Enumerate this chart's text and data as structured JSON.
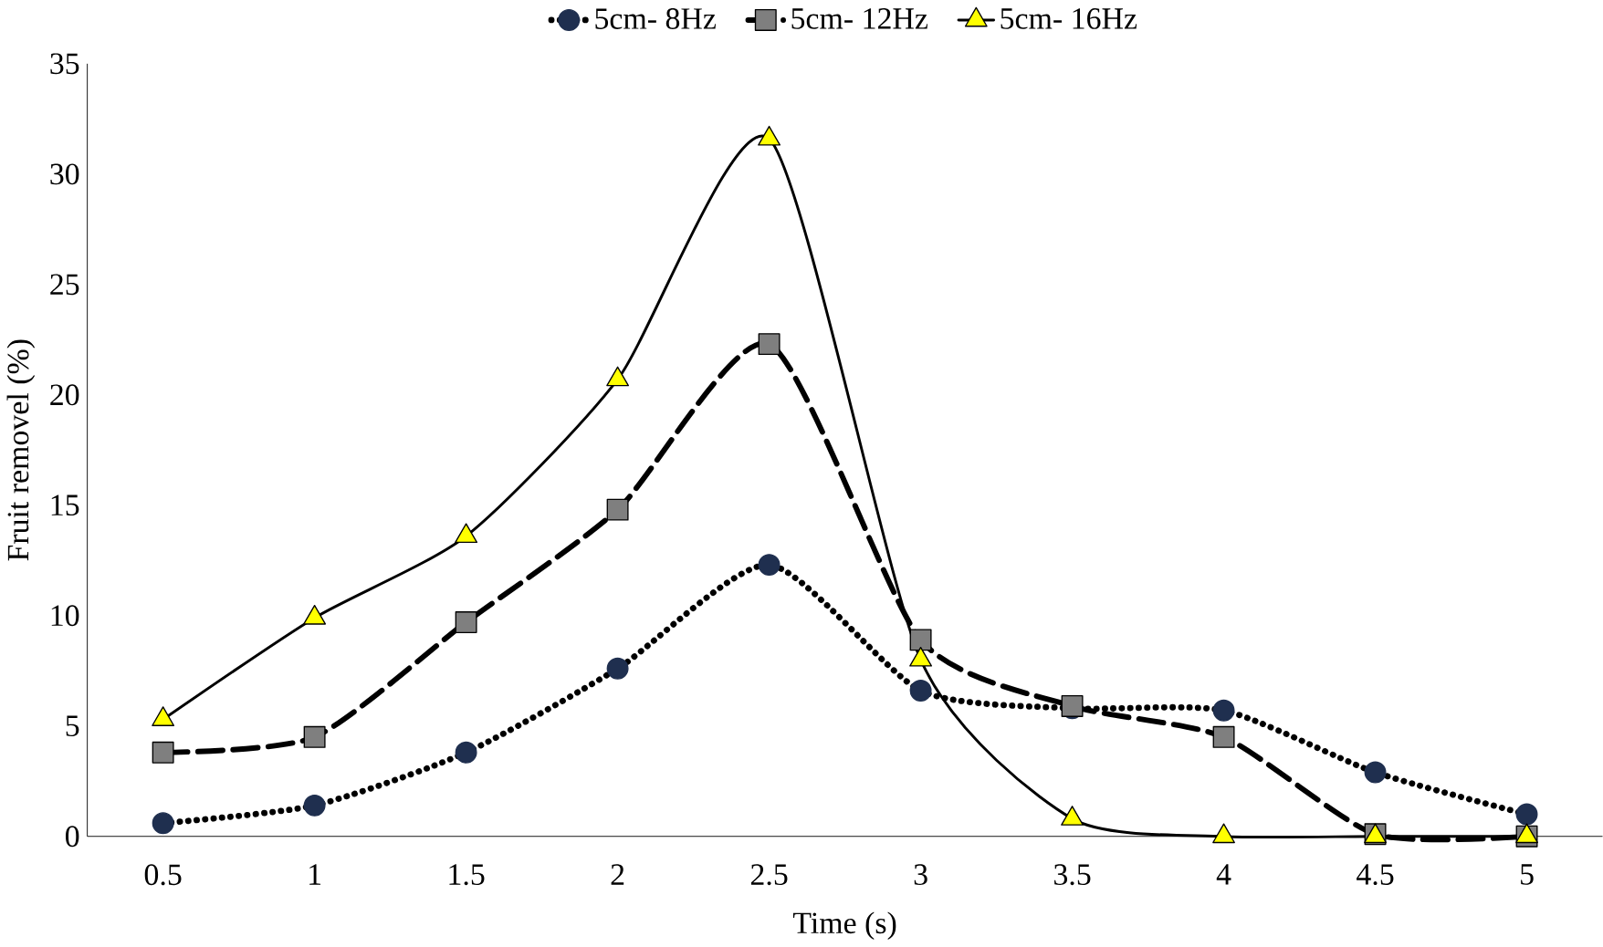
{
  "chart_data": {
    "type": "line",
    "xlabel": "Time (s)",
    "ylabel": "Fruit removel (%)",
    "categories": [
      "0.5",
      "1",
      "1.5",
      "2",
      "2.5",
      "3",
      "3.5",
      "4",
      "4.5",
      "5"
    ],
    "series": [
      {
        "name": "5cm- 8Hz",
        "color": "#1f2f4f",
        "marker": "circle",
        "line_style": "dotted",
        "values": [
          0.6,
          1.4,
          3.8,
          7.6,
          12.3,
          6.6,
          5.8,
          5.7,
          2.9,
          1.0
        ]
      },
      {
        "name": "5cm- 12Hz",
        "color": "#7f7f7f",
        "marker": "square",
        "line_style": "dashed",
        "values": [
          3.8,
          4.5,
          9.7,
          14.8,
          22.3,
          8.9,
          5.9,
          4.5,
          0.1,
          0
        ]
      },
      {
        "name": "5cm- 16Hz",
        "color": "#ffff00",
        "marker": "triangle",
        "line_style": "solid",
        "values": [
          5.3,
          9.9,
          13.6,
          20.7,
          31.6,
          8.0,
          0.8,
          0,
          0,
          0
        ]
      }
    ],
    "ylim": [
      0,
      35
    ],
    "yticks": [
      0,
      5,
      10,
      15,
      20,
      25,
      30,
      35
    ],
    "grid": false,
    "legend": "top"
  }
}
